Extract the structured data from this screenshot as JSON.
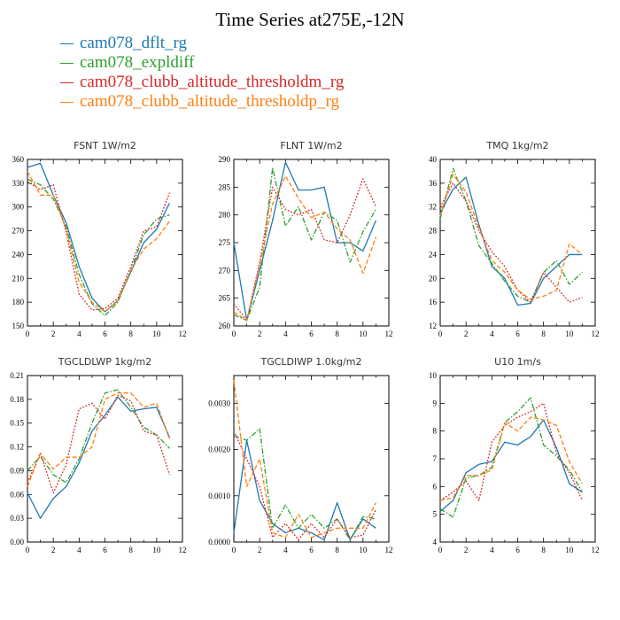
{
  "figure": {
    "title": "Time Series at275E,-12N"
  },
  "legend": [
    {
      "label": "cam078_dflt_rg",
      "color": "#1f77b4",
      "dash": "solid"
    },
    {
      "label": "cam078_expldiff",
      "color": "#2ca02c",
      "dash": "dashdot"
    },
    {
      "label": "cam078_clubb_altitude_thresholdm_rg",
      "color": "#d62728",
      "dash": "dotted"
    },
    {
      "label": "cam078_clubb_altitude_thresholdp_rg",
      "color": "#ff7f0e",
      "dash": "dashed"
    }
  ],
  "chart_data": [
    {
      "type": "line",
      "title": "FSNT   1W/m2",
      "x": [
        0,
        1,
        2,
        3,
        4,
        5,
        6,
        7,
        8,
        9,
        10,
        11
      ],
      "xlim": [
        0,
        12
      ],
      "xticks": [
        0,
        2,
        4,
        6,
        8,
        10,
        12
      ],
      "ylim": [
        150,
        360
      ],
      "yticks": [
        150,
        180,
        210,
        240,
        270,
        300,
        330,
        360
      ],
      "ytick_labels": [
        "150",
        "180",
        "210",
        "240",
        "270",
        "300",
        "330",
        "360"
      ],
      "series": [
        {
          "name": "cam078_dflt_rg",
          "values": [
            350,
            355,
            315,
            280,
            225,
            185,
            168,
            182,
            218,
            255,
            272,
            305
          ]
        },
        {
          "name": "cam078_expldiff",
          "values": [
            335,
            328,
            310,
            275,
            215,
            178,
            163,
            180,
            220,
            265,
            285,
            290
          ]
        },
        {
          "name": "cam078_clubb_altitude_thresholdm_rg",
          "values": [
            332,
            322,
            328,
            268,
            190,
            170,
            172,
            185,
            225,
            270,
            275,
            318
          ]
        },
        {
          "name": "cam078_clubb_altitude_thresholdp_rg",
          "values": [
            345,
            315,
            315,
            272,
            205,
            180,
            168,
            182,
            220,
            247,
            260,
            282
          ]
        }
      ]
    },
    {
      "type": "line",
      "title": "FLNT   1W/m2",
      "x": [
        0,
        1,
        2,
        3,
        4,
        5,
        6,
        7,
        8,
        9,
        10,
        11
      ],
      "xlim": [
        0,
        12
      ],
      "xticks": [
        0,
        2,
        4,
        6,
        8,
        10,
        12
      ],
      "ylim": [
        260,
        290
      ],
      "yticks": [
        260,
        265,
        270,
        275,
        280,
        285,
        290
      ],
      "ytick_labels": [
        "260",
        "265",
        "270",
        "275",
        "280",
        "285",
        "290"
      ],
      "series": [
        {
          "name": "cam078_dflt_rg",
          "values": [
            275,
            261,
            270,
            279,
            289.5,
            284.5,
            284.5,
            285,
            275,
            275,
            273.5,
            279
          ]
        },
        {
          "name": "cam078_expldiff",
          "values": [
            262,
            261,
            267,
            288.5,
            278,
            281.5,
            275.5,
            280.5,
            279,
            271.5,
            277,
            281
          ]
        },
        {
          "name": "cam078_clubb_altitude_thresholdm_rg",
          "values": [
            264,
            261,
            271.5,
            285,
            281,
            280,
            281,
            275.5,
            275,
            280,
            286.5,
            281.5
          ]
        },
        {
          "name": "cam078_clubb_altitude_thresholdp_rg",
          "values": [
            262.5,
            261,
            271,
            282,
            287,
            283,
            279.5,
            280.5,
            277.5,
            275.5,
            269.5,
            276
          ]
        }
      ]
    },
    {
      "type": "line",
      "title": "TMQ   1kg/m2",
      "x": [
        0,
        1,
        2,
        3,
        4,
        5,
        6,
        7,
        8,
        9,
        10,
        11
      ],
      "xlim": [
        0,
        12
      ],
      "xticks": [
        0,
        2,
        4,
        6,
        8,
        10,
        12
      ],
      "ylim": [
        12,
        40
      ],
      "yticks": [
        12,
        16,
        20,
        24,
        28,
        32,
        36,
        40
      ],
      "ytick_labels": [
        "12",
        "16",
        "20",
        "24",
        "28",
        "32",
        "36",
        "40"
      ],
      "series": [
        {
          "name": "cam078_dflt_rg",
          "values": [
            31,
            35,
            37,
            29,
            22,
            20,
            15.5,
            15.8,
            20,
            22,
            24,
            24
          ]
        },
        {
          "name": "cam078_expldiff",
          "values": [
            30,
            38.5,
            33,
            25.5,
            22.5,
            19.5,
            17,
            16,
            21,
            23,
            19,
            21
          ]
        },
        {
          "name": "cam078_clubb_altitude_thresholdm_rg",
          "values": [
            32,
            36,
            33,
            28,
            24.5,
            22,
            18,
            16,
            21,
            18.5,
            16,
            16.8
          ]
        },
        {
          "name": "cam078_clubb_altitude_thresholdp_rg",
          "values": [
            30.5,
            37.5,
            34.5,
            28.5,
            23,
            21,
            18,
            16.5,
            17,
            18,
            25.8,
            24
          ]
        }
      ]
    },
    {
      "type": "line",
      "title": "TGCLDLWP   1kg/m2",
      "x": [
        0,
        1,
        2,
        3,
        4,
        5,
        6,
        7,
        8,
        9,
        10,
        11
      ],
      "xlim": [
        0,
        12
      ],
      "xticks": [
        0,
        2,
        4,
        6,
        8,
        10,
        12
      ],
      "ylim": [
        0,
        0.21
      ],
      "yticks": [
        0,
        0.03,
        0.06,
        0.09,
        0.12,
        0.15,
        0.18,
        0.21
      ],
      "ytick_labels": [
        "0.00",
        "0.03",
        "0.06",
        "0.09",
        "0.12",
        "0.15",
        "0.18",
        "0.21"
      ],
      "series": [
        {
          "name": "cam078_dflt_rg",
          "values": [
            0.062,
            0.03,
            0.055,
            0.07,
            0.1,
            0.14,
            0.16,
            0.183,
            0.165,
            0.168,
            0.17,
            0.132
          ]
        },
        {
          "name": "cam078_expldiff",
          "values": [
            0.09,
            0.108,
            0.085,
            0.075,
            0.105,
            0.15,
            0.188,
            0.192,
            0.17,
            0.145,
            0.135,
            0.118
          ]
        },
        {
          "name": "cam078_clubb_altitude_thresholdm_rg",
          "values": [
            0.075,
            0.112,
            0.062,
            0.098,
            0.168,
            0.175,
            0.155,
            0.185,
            0.178,
            0.14,
            0.135,
            0.085
          ]
        },
        {
          "name": "cam078_clubb_altitude_thresholdp_rg",
          "values": [
            0.07,
            0.112,
            0.092,
            0.107,
            0.107,
            0.12,
            0.18,
            0.188,
            0.188,
            0.17,
            0.175,
            0.13
          ]
        }
      ]
    },
    {
      "type": "line",
      "title": "TGCLDIWP   1.0kg/m2",
      "x": [
        0,
        1,
        2,
        3,
        4,
        5,
        6,
        7,
        8,
        9,
        10,
        11
      ],
      "xlim": [
        0,
        12
      ],
      "xticks": [
        0,
        2,
        4,
        6,
        8,
        10,
        12
      ],
      "ylim": [
        0,
        0.0036
      ],
      "yticks": [
        0,
        0.001,
        0.002,
        0.003
      ],
      "ytick_labels": [
        "0.0000",
        "0.0010",
        "0.0020",
        "0.0030"
      ],
      "series": [
        {
          "name": "cam078_dflt_rg",
          "values": [
            0.0002,
            0.0022,
            0.0009,
            0.0004,
            0.0002,
            0.0003,
            0.0002,
            5e-05,
            0.00085,
            5e-05,
            0.0005,
            0.0003
          ]
        },
        {
          "name": "cam078_expldiff",
          "values": [
            0.0023,
            0.0022,
            0.00245,
            0.0003,
            0.0008,
            0.0003,
            0.0006,
            0.0003,
            0.0005,
            5e-05,
            0.00055,
            0.0005
          ]
        },
        {
          "name": "cam078_clubb_altitude_thresholdm_rg",
          "values": [
            0.0024,
            0.0018,
            0.0012,
            0.0001,
            0.0004,
            5e-05,
            0.0004,
            0.0001,
            0.0005,
            0.0001,
            0.00015,
            0.0007
          ]
        },
        {
          "name": "cam078_clubb_altitude_thresholdp_rg",
          "values": [
            0.0035,
            0.0012,
            0.0018,
            0.0002,
            0.0001,
            0.0006,
            0.0001,
            0.0002,
            0.0003,
            0.0003,
            0.0003,
            0.00085
          ]
        }
      ]
    },
    {
      "type": "line",
      "title": "U10   1m/s",
      "x": [
        0,
        1,
        2,
        3,
        4,
        5,
        6,
        7,
        8,
        9,
        10,
        11
      ],
      "xlim": [
        0,
        12
      ],
      "xticks": [
        0,
        2,
        4,
        6,
        8,
        10,
        12
      ],
      "ylim": [
        4,
        10
      ],
      "yticks": [
        4,
        5,
        6,
        7,
        8,
        9,
        10
      ],
      "ytick_labels": [
        "4",
        "5",
        "6",
        "7",
        "8",
        "9",
        "10"
      ],
      "series": [
        {
          "name": "cam078_dflt_rg",
          "values": [
            5.1,
            5.5,
            6.5,
            6.8,
            6.9,
            7.6,
            7.5,
            7.8,
            8.4,
            7.4,
            6.1,
            5.8
          ]
        },
        {
          "name": "cam078_expldiff",
          "values": [
            5.2,
            4.9,
            6.3,
            6.4,
            6.7,
            8.3,
            8.7,
            9.2,
            7.5,
            7.1,
            6.6,
            5.8
          ]
        },
        {
          "name": "cam078_clubb_altitude_thresholdm_rg",
          "values": [
            5.5,
            5.8,
            6.2,
            5.5,
            7.6,
            8.2,
            8.5,
            8.7,
            9.0,
            7.2,
            6.5,
            5.5
          ]
        },
        {
          "name": "cam078_clubb_altitude_thresholdp_rg",
          "values": [
            5.5,
            5.6,
            6.4,
            6.4,
            6.6,
            8.3,
            8.0,
            8.5,
            8.4,
            8.2,
            6.9,
            6.1
          ]
        }
      ]
    }
  ]
}
